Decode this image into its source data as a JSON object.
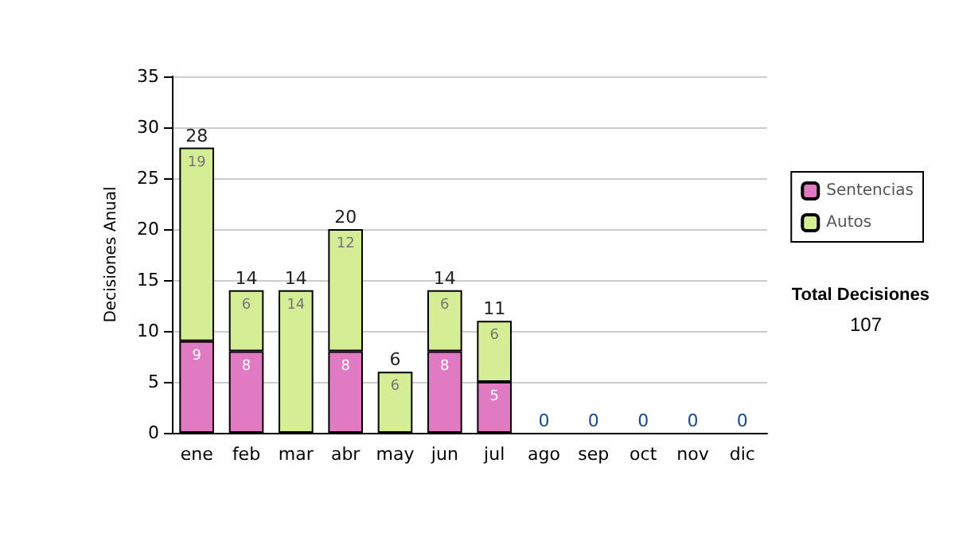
{
  "chart_data": {
    "type": "bar",
    "stacked": true,
    "ylabel": "Decisiones Anual",
    "categories": [
      "ene",
      "feb",
      "mar",
      "abr",
      "may",
      "jun",
      "jul",
      "ago",
      "sep",
      "oct",
      "nov",
      "dic"
    ],
    "series": [
      {
        "name": "Sentencias",
        "color": "#e07ac2",
        "values": [
          9,
          8,
          0,
          8,
          0,
          8,
          5,
          0,
          0,
          0,
          0,
          0
        ],
        "value_labels": [
          "9",
          "8",
          null,
          "8",
          null,
          "8",
          "5",
          null,
          null,
          null,
          null,
          null
        ]
      },
      {
        "name": "Autos",
        "color": "#d5ee95",
        "values": [
          19,
          6,
          14,
          12,
          6,
          6,
          6,
          0,
          0,
          0,
          0,
          0
        ],
        "value_labels": [
          "19",
          "6",
          "14",
          "12",
          "6",
          "6",
          "6",
          null,
          null,
          null,
          null,
          null
        ]
      }
    ],
    "totals": [
      "28",
      "14",
      "14",
      "20",
      "6",
      "14",
      "11",
      "0",
      "0",
      "0",
      "0",
      "0"
    ],
    "ylim": [
      0,
      35
    ],
    "yticks": [
      0,
      5,
      10,
      15,
      20,
      25,
      30,
      35
    ],
    "grid": "y",
    "legend": "right",
    "annotations": [
      "Total Decisiones",
      "107"
    ]
  }
}
